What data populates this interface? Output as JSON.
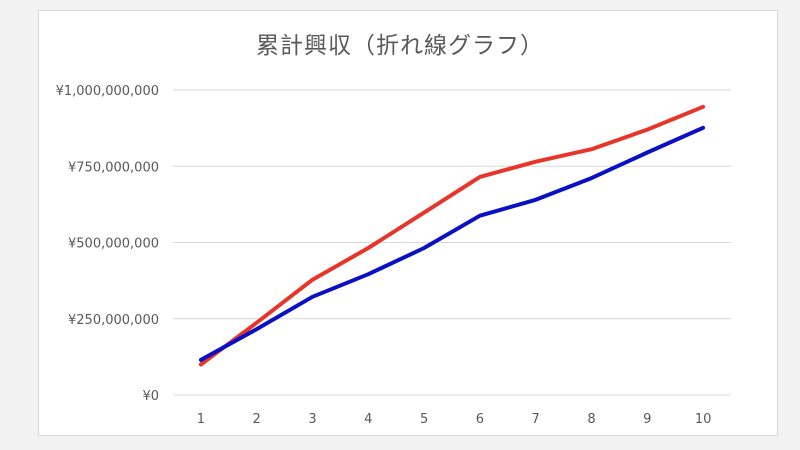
{
  "chart_data": {
    "type": "line",
    "title": "累計興収（折れ線グラフ）",
    "xlabel": "",
    "ylabel": "",
    "x": [
      1,
      2,
      3,
      4,
      5,
      6,
      7,
      8,
      9,
      10
    ],
    "x_tick_labels": [
      "1",
      "2",
      "3",
      "4",
      "5",
      "6",
      "7",
      "8",
      "9",
      "10"
    ],
    "y_tick_values": [
      0,
      250000000,
      500000000,
      750000000,
      1000000000
    ],
    "y_tick_labels": [
      "¥0",
      "¥250,000,000",
      "¥500,000,000",
      "¥750,000,000",
      "¥1,000,000,000"
    ],
    "ylim": [
      0,
      1000000000
    ],
    "grid": true,
    "legend": "none",
    "series": [
      {
        "color": "#e8352a",
        "values": [
          100000000,
          237000000,
          378000000,
          482000000,
          598000000,
          715000000,
          765000000,
          806000000,
          870000000,
          945000000
        ]
      },
      {
        "color": "#0a10c4",
        "values": [
          115000000,
          216000000,
          322000000,
          396000000,
          482000000,
          588000000,
          640000000,
          711000000,
          795000000,
          876000000
        ]
      }
    ]
  }
}
